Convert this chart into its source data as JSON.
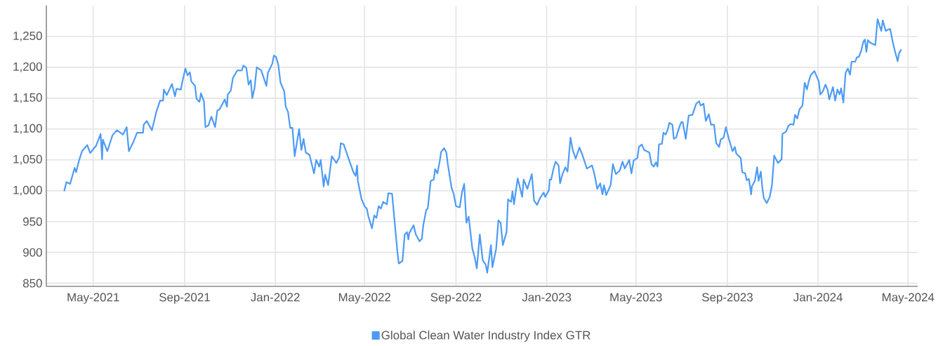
{
  "chart_data": {
    "type": "line",
    "x": [
      "2021-03-23",
      "2021-03-26",
      "2021-03-31",
      "2021-04-06",
      "2021-04-08",
      "2021-04-12",
      "2021-04-16",
      "2021-04-23",
      "2021-04-27",
      "2021-05-05",
      "2021-05-11",
      "2021-05-13",
      "2021-05-14",
      "2021-05-20",
      "2021-05-27",
      "2021-06-02",
      "2021-06-10",
      "2021-06-15",
      "2021-06-18",
      "2021-06-24",
      "2021-06-29",
      "2021-07-07",
      "2021-07-08",
      "2021-07-12",
      "2021-07-19",
      "2021-07-25",
      "2021-07-30",
      "2021-08-03",
      "2021-08-04",
      "2021-08-08",
      "2021-08-15",
      "2021-08-19",
      "2021-08-21",
      "2021-08-27",
      "2021-08-29",
      "2021-09-02",
      "2021-09-05",
      "2021-09-08",
      "2021-09-10",
      "2021-09-15",
      "2021-09-17",
      "2021-09-21",
      "2021-09-23",
      "2021-09-27",
      "2021-09-29",
      "2021-10-03",
      "2021-10-07",
      "2021-10-12",
      "2021-10-15",
      "2021-10-18",
      "2021-10-25",
      "2021-10-28",
      "2021-10-29",
      "2021-11-02",
      "2021-11-05",
      "2021-11-11",
      "2021-11-17",
      "2021-11-19",
      "2021-11-23",
      "2021-11-26",
      "2021-11-29",
      "2021-12-01",
      "2021-12-04",
      "2021-12-07",
      "2021-12-13",
      "2021-12-20",
      "2021-12-22",
      "2021-12-28",
      "2021-12-30",
      "2022-01-02",
      "2022-01-05",
      "2022-01-08",
      "2022-01-13",
      "2022-01-15",
      "2022-01-18",
      "2022-01-21",
      "2022-01-24",
      "2022-01-27",
      "2022-02-02",
      "2022-02-05",
      "2022-02-08",
      "2022-02-11",
      "2022-02-16",
      "2022-02-22",
      "2022-02-25",
      "2022-03-01",
      "2022-03-03",
      "2022-03-07",
      "2022-03-09",
      "2022-03-13",
      "2022-03-18",
      "2022-03-24",
      "2022-03-28",
      "2022-03-30",
      "2022-04-03",
      "2022-04-11",
      "2022-04-16",
      "2022-04-19",
      "2022-04-21",
      "2022-04-22",
      "2022-04-27",
      "2022-05-01",
      "2022-05-04",
      "2022-05-06",
      "2022-05-11",
      "2022-05-14",
      "2022-05-17",
      "2022-05-20",
      "2022-05-23",
      "2022-05-26",
      "2022-05-31",
      "2022-06-02",
      "2022-06-07",
      "2022-06-10",
      "2022-06-14",
      "2022-06-16",
      "2022-06-21",
      "2022-06-24",
      "2022-06-27",
      "2022-06-29",
      "2022-06-30",
      "2022-07-06",
      "2022-07-09",
      "2022-07-14",
      "2022-07-17",
      "2022-07-19",
      "2022-07-23",
      "2022-07-25",
      "2022-07-29",
      "2022-08-02",
      "2022-08-04",
      "2022-08-07",
      "2022-08-10",
      "2022-08-12",
      "2022-08-16",
      "2022-08-19",
      "2022-08-21",
      "2022-08-24",
      "2022-08-26",
      "2022-08-29",
      "2022-09-01",
      "2022-09-06",
      "2022-09-09",
      "2022-09-12",
      "2022-09-15",
      "2022-09-18",
      "2022-09-23",
      "2022-09-26",
      "2022-09-29",
      "2022-10-03",
      "2022-10-07",
      "2022-10-11",
      "2022-10-13",
      "2022-10-18",
      "2022-10-20",
      "2022-10-25",
      "2022-10-28",
      "2022-10-31",
      "2022-11-03",
      "2022-11-08",
      "2022-11-10",
      "2022-11-14",
      "2022-11-16",
      "2022-11-18",
      "2022-11-20",
      "2022-11-23",
      "2022-11-29",
      "2022-12-01",
      "2022-12-06",
      "2022-12-12",
      "2022-12-15",
      "2022-12-19",
      "2022-12-23",
      "2022-12-28",
      "2022-12-30",
      "2023-01-04",
      "2023-01-05",
      "2023-01-07",
      "2023-01-10",
      "2023-01-13",
      "2023-01-17",
      "2023-01-19",
      "2023-01-22",
      "2023-01-26",
      "2023-01-29",
      "2023-02-02",
      "2023-02-05",
      "2023-02-09",
      "2023-02-14",
      "2023-02-18",
      "2023-02-24",
      "2023-03-03",
      "2023-03-06",
      "2023-03-10",
      "2023-03-14",
      "2023-03-17",
      "2023-03-19",
      "2023-03-22",
      "2023-03-28",
      "2023-03-31",
      "2023-04-04",
      "2023-04-09",
      "2023-04-13",
      "2023-04-16",
      "2023-04-22",
      "2023-04-25",
      "2023-04-28",
      "2023-05-03",
      "2023-05-05",
      "2023-05-09",
      "2023-05-12",
      "2023-05-19",
      "2023-05-22",
      "2023-05-25",
      "2023-05-28",
      "2023-05-30",
      "2023-06-01",
      "2023-06-05",
      "2023-06-07",
      "2023-06-10",
      "2023-06-13",
      "2023-06-15",
      "2023-06-19",
      "2023-06-21",
      "2023-06-24",
      "2023-06-28",
      "2023-07-01",
      "2023-07-03",
      "2023-07-07",
      "2023-07-11",
      "2023-07-16",
      "2023-07-21",
      "2023-07-25",
      "2023-07-27",
      "2023-07-31",
      "2023-08-03",
      "2023-08-07",
      "2023-08-10",
      "2023-08-14",
      "2023-08-17",
      "2023-08-21",
      "2023-08-23",
      "2023-08-27",
      "2023-08-30",
      "2023-09-03",
      "2023-09-08",
      "2023-09-11",
      "2023-09-13",
      "2023-09-19",
      "2023-09-21",
      "2023-09-25",
      "2023-09-27",
      "2023-09-30",
      "2023-10-03",
      "2023-10-04",
      "2023-10-08",
      "2023-10-11",
      "2023-10-13",
      "2023-10-16",
      "2023-10-18",
      "2023-10-20",
      "2023-10-24",
      "2023-10-28",
      "2023-10-31",
      "2023-11-03",
      "2023-11-08",
      "2023-11-13",
      "2023-11-14",
      "2023-11-19",
      "2023-11-22",
      "2023-11-25",
      "2023-11-29",
      "2023-12-01",
      "2023-12-04",
      "2023-12-07",
      "2023-12-11",
      "2023-12-14",
      "2023-12-17",
      "2023-12-19",
      "2023-12-22",
      "2023-12-27",
      "2024-01-02",
      "2024-01-04",
      "2024-01-07",
      "2024-01-11",
      "2024-01-14",
      "2024-01-16",
      "2024-01-21",
      "2024-01-24",
      "2024-01-27",
      "2024-01-30",
      "2024-02-01",
      "2024-02-04",
      "2024-02-07",
      "2024-02-10",
      "2024-02-13",
      "2024-02-15",
      "2024-02-20",
      "2024-02-22",
      "2024-02-25",
      "2024-02-28",
      "2024-03-02",
      "2024-03-04",
      "2024-03-06",
      "2024-03-08",
      "2024-03-11",
      "2024-03-18",
      "2024-03-21",
      "2024-03-26",
      "2024-03-28",
      "2024-04-01",
      "2024-04-04",
      "2024-04-07",
      "2024-04-11",
      "2024-04-13",
      "2024-04-17",
      "2024-04-19",
      "2024-04-22"
    ],
    "series": [
      {
        "name": "Global Clean Water Industry Index GTR",
        "color": "#4d9bf5",
        "values": [
          999,
          1014,
          1011,
          1037,
          1030,
          1049,
          1064,
          1074,
          1061,
          1073,
          1092,
          1051,
          1083,
          1064,
          1090,
          1098,
          1091,
          1103,
          1064,
          1079,
          1094,
          1094,
          1107,
          1113,
          1098,
          1128,
          1146,
          1146,
          1164,
          1155,
          1173,
          1153,
          1165,
          1164,
          1177,
          1198,
          1187,
          1192,
          1177,
          1170,
          1149,
          1144,
          1158,
          1145,
          1103,
          1106,
          1120,
          1103,
          1130,
          1132,
          1148,
          1136,
          1156,
          1162,
          1183,
          1195,
          1195,
          1203,
          1199,
          1172,
          1179,
          1150,
          1166,
          1200,
          1195,
          1170,
          1191,
          1206,
          1219,
          1217,
          1204,
          1175,
          1161,
          1136,
          1128,
          1102,
          1102,
          1056,
          1100,
          1066,
          1084,
          1062,
          1058,
          1028,
          1050,
          1039,
          1050,
          1007,
          1026,
          1009,
          1056,
          1045,
          1054,
          1077,
          1075,
          1047,
          1030,
          1024,
          1041,
          1016,
          986,
          975,
          971,
          959,
          939,
          960,
          956,
          975,
          971,
          982,
          978,
          996,
          995,
          956,
          903,
          882,
          886,
          929,
          933,
          921,
          931,
          944,
          929,
          918,
          922,
          944,
          969,
          971,
          1016,
          1018,
          1035,
          1028,
          1047,
          1063,
          1069,
          1062,
          1043,
          1020,
          1005,
          994,
          975,
          973,
          997,
          1011,
          948,
          958,
          906,
          893,
          874,
          929,
          887,
          880,
          867,
          912,
          876,
          906,
          952,
          948,
          912,
          933,
          986,
          982,
          999,
          978,
          995,
          1020,
          990,
          1018,
          1003,
          1027,
          984,
          977,
          988,
          997,
          990,
          1001,
          1018,
          1018,
          1035,
          1047,
          1041,
          1012,
          1026,
          1038,
          1031,
          1086,
          1066,
          1052,
          1070,
          1058,
          1036,
          1041,
          1028,
          1003,
          1012,
          994,
          1009,
          993,
          1009,
          1043,
          1027,
          1032,
          1047,
          1036,
          1050,
          1028,
          1049,
          1053,
          1071,
          1075,
          1066,
          1062,
          1043,
          1039,
          1046,
          1039,
          1075,
          1076,
          1094,
          1091,
          1100,
          1110,
          1107,
          1084,
          1086,
          1102,
          1111,
          1111,
          1084,
          1122,
          1123,
          1141,
          1145,
          1138,
          1141,
          1113,
          1124,
          1107,
          1107,
          1077,
          1071,
          1083,
          1086,
          1103,
          1084,
          1064,
          1071,
          1060,
          1053,
          1030,
          1028,
          1017,
          1019,
          994,
          1007,
          1016,
          1038,
          1016,
          1031,
          1005,
          988,
          980,
          990,
          1009,
          1057,
          1045,
          1051,
          1092,
          1096,
          1105,
          1108,
          1107,
          1123,
          1117,
          1132,
          1138,
          1175,
          1164,
          1175,
          1187,
          1194,
          1177,
          1156,
          1160,
          1172,
          1163,
          1148,
          1168,
          1146,
          1164,
          1156,
          1166,
          1143,
          1191,
          1198,
          1188,
          1209,
          1209,
          1216,
          1217,
          1227,
          1242,
          1245,
          1225,
          1244,
          1240,
          1236,
          1278,
          1259,
          1276,
          1259,
          1261,
          1262,
          1238,
          1228,
          1210,
          1223,
          1229
        ]
      }
    ],
    "xlim": [
      "2021-02-27",
      "2024-05-14"
    ],
    "xticks": [
      {
        "value": "2021-05-01",
        "label": "May-2021"
      },
      {
        "value": "2021-09-01",
        "label": "Sep-2021"
      },
      {
        "value": "2022-01-01",
        "label": "Jan-2022"
      },
      {
        "value": "2022-05-01",
        "label": "May-2022"
      },
      {
        "value": "2022-09-01",
        "label": "Sep-2022"
      },
      {
        "value": "2023-01-01",
        "label": "Jan-2023"
      },
      {
        "value": "2023-05-01",
        "label": "May-2023"
      },
      {
        "value": "2023-09-01",
        "label": "Sep-2023"
      },
      {
        "value": "2024-01-01",
        "label": "Jan-2024"
      },
      {
        "value": "2024-05-01",
        "label": "May-2024"
      }
    ],
    "ylim": [
      845,
      1300
    ],
    "yticks": [
      850,
      900,
      950,
      {
        "value": 1000,
        "label": "1,000"
      },
      {
        "value": 1050,
        "label": "1,050"
      },
      {
        "value": 1100,
        "label": "1,100"
      },
      {
        "value": 1150,
        "label": "1,150"
      },
      {
        "value": 1200,
        "label": "1,200"
      },
      {
        "value": 1250,
        "label": "1,250"
      }
    ],
    "grid": true,
    "legend": "bottom",
    "marker": "none",
    "line_style": "solid"
  }
}
